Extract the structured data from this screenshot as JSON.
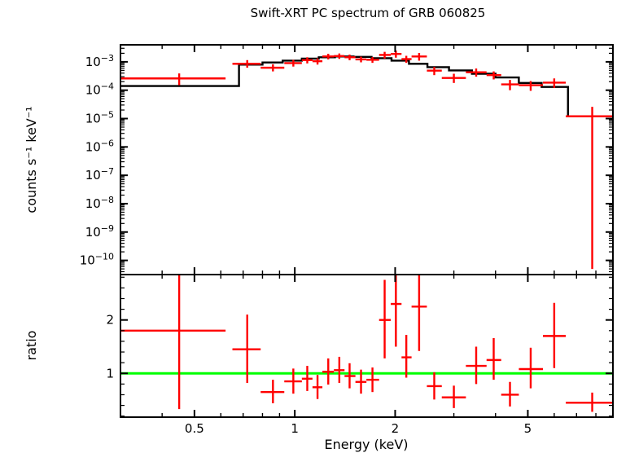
{
  "chart_data": {
    "type": "scatter",
    "title": "Swift-XRT PC spectrum of GRB 060825",
    "xlabel": "Energy (keV)",
    "x_scale": "log",
    "x_range": [
      0.3,
      9.0
    ],
    "x_major_ticks": [
      0.5,
      1,
      2,
      5
    ],
    "x_major_tick_labels": [
      "0.5",
      "1",
      "2",
      "5"
    ],
    "x_minor_ticks": [
      0.4,
      0.6,
      0.7,
      0.8,
      0.9,
      3,
      4,
      6,
      7,
      8
    ],
    "colors": {
      "data": "#ff0000",
      "model": "#000000",
      "ratio_line": "#00ff00",
      "axis": "#000000",
      "background": "#ffffff"
    },
    "top_panel": {
      "ylabel": "counts s⁻¹ keV⁻¹",
      "y_scale": "log",
      "y_range_log": [
        -10.5,
        -2.4
      ],
      "y_ticks": [
        {
          "exp": -3,
          "label": "10⁻³"
        },
        {
          "exp": -4,
          "label": "10⁻⁴"
        },
        {
          "exp": -5,
          "label": "10⁻⁵"
        },
        {
          "exp": -6,
          "label": "10⁻⁶"
        },
        {
          "exp": -7,
          "label": "10⁻⁷"
        },
        {
          "exp": -8,
          "label": "10⁻⁸"
        },
        {
          "exp": -9,
          "label": "10⁻⁹"
        },
        {
          "exp": -10,
          "label": "10⁻¹⁰"
        }
      ],
      "model_histogram": {
        "edges": [
          0.3,
          0.68,
          0.8,
          0.92,
          1.05,
          1.18,
          1.32,
          1.5,
          1.7,
          1.95,
          2.2,
          2.5,
          2.9,
          3.4,
          4.0,
          4.7,
          5.5,
          6.6,
          9.0
        ],
        "values": [
          0.00014,
          0.0008,
          0.00095,
          0.0011,
          0.0013,
          0.00145,
          0.00155,
          0.0015,
          0.00135,
          0.0011,
          0.00085,
          0.00065,
          0.0005,
          0.00038,
          0.00028,
          0.00018,
          0.00013,
          1.2e-05
        ]
      },
      "points": [
        {
          "x": 0.45,
          "xlo": 0.3,
          "xhi": 0.62,
          "y": 0.00026,
          "ylo": 0.00015,
          "yhi": 0.00039
        },
        {
          "x": 0.72,
          "xlo": 0.65,
          "xhi": 0.79,
          "y": 0.00085,
          "ylo": 0.00062,
          "yhi": 0.00115
        },
        {
          "x": 0.86,
          "xlo": 0.79,
          "xhi": 0.93,
          "y": 0.00062,
          "ylo": 0.00046,
          "yhi": 0.00082
        },
        {
          "x": 0.99,
          "xlo": 0.93,
          "xhi": 1.05,
          "y": 0.0009,
          "ylo": 0.00068,
          "yhi": 0.00117
        },
        {
          "x": 1.09,
          "xlo": 1.05,
          "xhi": 1.13,
          "y": 0.00115,
          "ylo": 0.00088,
          "yhi": 0.00145
        },
        {
          "x": 1.17,
          "xlo": 1.13,
          "xhi": 1.21,
          "y": 0.00105,
          "ylo": 0.0008,
          "yhi": 0.00133
        },
        {
          "x": 1.26,
          "xlo": 1.21,
          "xhi": 1.31,
          "y": 0.00155,
          "ylo": 0.00122,
          "yhi": 0.00192
        },
        {
          "x": 1.36,
          "xlo": 1.31,
          "xhi": 1.41,
          "y": 0.0016,
          "ylo": 0.00127,
          "yhi": 0.00197
        },
        {
          "x": 1.46,
          "xlo": 1.41,
          "xhi": 1.52,
          "y": 0.00145,
          "ylo": 0.00114,
          "yhi": 0.0018
        },
        {
          "x": 1.58,
          "xlo": 1.52,
          "xhi": 1.64,
          "y": 0.00122,
          "ylo": 0.00096,
          "yhi": 0.00152
        },
        {
          "x": 1.71,
          "xlo": 1.64,
          "xhi": 1.79,
          "y": 0.00118,
          "ylo": 0.00092,
          "yhi": 0.00147
        },
        {
          "x": 1.86,
          "xlo": 1.79,
          "xhi": 1.94,
          "y": 0.00175,
          "ylo": 0.0013,
          "yhi": 0.00225
        },
        {
          "x": 2.01,
          "xlo": 1.94,
          "xhi": 2.09,
          "y": 0.0019,
          "ylo": 0.0014,
          "yhi": 0.0025
        },
        {
          "x": 2.16,
          "xlo": 2.09,
          "xhi": 2.24,
          "y": 0.00125,
          "ylo": 0.00092,
          "yhi": 0.00163
        },
        {
          "x": 2.36,
          "xlo": 2.24,
          "xhi": 2.49,
          "y": 0.00155,
          "ylo": 0.0011,
          "yhi": 0.00205
        },
        {
          "x": 2.62,
          "xlo": 2.49,
          "xhi": 2.76,
          "y": 0.00049,
          "ylo": 0.00034,
          "yhi": 0.00066
        },
        {
          "x": 3.0,
          "xlo": 2.76,
          "xhi": 3.26,
          "y": 0.00027,
          "ylo": 0.00018,
          "yhi": 0.00038
        },
        {
          "x": 3.5,
          "xlo": 3.26,
          "xhi": 3.76,
          "y": 0.00043,
          "ylo": 0.0003,
          "yhi": 0.00058
        },
        {
          "x": 3.95,
          "xlo": 3.76,
          "xhi": 4.16,
          "y": 0.00034,
          "ylo": 0.00024,
          "yhi": 0.00046
        },
        {
          "x": 4.42,
          "xlo": 4.16,
          "xhi": 4.7,
          "y": 0.00016,
          "ylo": 0.0001,
          "yhi": 0.00023
        },
        {
          "x": 5.1,
          "xlo": 4.7,
          "xhi": 5.55,
          "y": 0.00015,
          "ylo": 9.5e-05,
          "yhi": 0.00021
        },
        {
          "x": 6.0,
          "xlo": 5.55,
          "xhi": 6.5,
          "y": 0.000185,
          "ylo": 0.00012,
          "yhi": 0.00026
        },
        {
          "x": 7.8,
          "xlo": 6.5,
          "xhi": 9.0,
          "y": 1.2e-05,
          "ylo": 5e-11,
          "yhi": 2.6e-05
        }
      ]
    },
    "bottom_panel": {
      "ylabel": "ratio",
      "y_scale": "linear",
      "y_range": [
        0.18,
        2.85
      ],
      "y_ticks": [
        {
          "value": 1,
          "label": "1"
        },
        {
          "value": 2,
          "label": "2"
        }
      ],
      "reference_line": 1.0,
      "points": [
        {
          "x": 0.45,
          "xlo": 0.3,
          "xhi": 0.62,
          "r": 1.8,
          "rlo": 0.33,
          "rhi": 2.85
        },
        {
          "x": 0.72,
          "xlo": 0.65,
          "xhi": 0.79,
          "r": 1.45,
          "rlo": 0.82,
          "rhi": 2.1
        },
        {
          "x": 0.86,
          "xlo": 0.79,
          "xhi": 0.93,
          "r": 0.65,
          "rlo": 0.44,
          "rhi": 0.88
        },
        {
          "x": 0.99,
          "xlo": 0.93,
          "xhi": 1.05,
          "r": 0.85,
          "rlo": 0.62,
          "rhi": 1.09
        },
        {
          "x": 1.09,
          "xlo": 1.05,
          "xhi": 1.13,
          "r": 0.9,
          "rlo": 0.67,
          "rhi": 1.14
        },
        {
          "x": 1.17,
          "xlo": 1.13,
          "xhi": 1.21,
          "r": 0.74,
          "rlo": 0.52,
          "rhi": 0.97
        },
        {
          "x": 1.26,
          "xlo": 1.21,
          "xhi": 1.31,
          "r": 1.03,
          "rlo": 0.79,
          "rhi": 1.28
        },
        {
          "x": 1.36,
          "xlo": 1.31,
          "xhi": 1.41,
          "r": 1.06,
          "rlo": 0.82,
          "rhi": 1.31
        },
        {
          "x": 1.46,
          "xlo": 1.41,
          "xhi": 1.52,
          "r": 0.95,
          "rlo": 0.72,
          "rhi": 1.19
        },
        {
          "x": 1.58,
          "xlo": 1.52,
          "xhi": 1.64,
          "r": 0.84,
          "rlo": 0.62,
          "rhi": 1.07
        },
        {
          "x": 1.71,
          "xlo": 1.64,
          "xhi": 1.79,
          "r": 0.88,
          "rlo": 0.65,
          "rhi": 1.11
        },
        {
          "x": 1.86,
          "xlo": 1.79,
          "xhi": 1.94,
          "r": 2.0,
          "rlo": 1.28,
          "rhi": 2.75
        },
        {
          "x": 2.01,
          "xlo": 1.94,
          "xhi": 2.09,
          "r": 2.3,
          "rlo": 1.5,
          "rhi": 2.85
        },
        {
          "x": 2.16,
          "xlo": 2.09,
          "xhi": 2.24,
          "r": 1.3,
          "rlo": 0.92,
          "rhi": 1.72
        },
        {
          "x": 2.36,
          "xlo": 2.24,
          "xhi": 2.49,
          "r": 2.25,
          "rlo": 1.42,
          "rhi": 2.85
        },
        {
          "x": 2.62,
          "xlo": 2.49,
          "xhi": 2.76,
          "r": 0.76,
          "rlo": 0.51,
          "rhi": 1.02
        },
        {
          "x": 3.0,
          "xlo": 2.76,
          "xhi": 3.26,
          "r": 0.55,
          "rlo": 0.35,
          "rhi": 0.77
        },
        {
          "x": 3.5,
          "xlo": 3.26,
          "xhi": 3.76,
          "r": 1.14,
          "rlo": 0.8,
          "rhi": 1.5
        },
        {
          "x": 3.95,
          "xlo": 3.76,
          "xhi": 4.16,
          "r": 1.25,
          "rlo": 0.88,
          "rhi": 1.66
        },
        {
          "x": 4.42,
          "xlo": 4.16,
          "xhi": 4.7,
          "r": 0.6,
          "rlo": 0.38,
          "rhi": 0.84
        },
        {
          "x": 5.1,
          "xlo": 4.7,
          "xhi": 5.55,
          "r": 1.08,
          "rlo": 0.72,
          "rhi": 1.48
        },
        {
          "x": 6.0,
          "xlo": 5.55,
          "xhi": 6.5,
          "r": 1.7,
          "rlo": 1.1,
          "rhi": 2.32
        },
        {
          "x": 7.8,
          "xlo": 6.5,
          "xhi": 9.0,
          "r": 0.45,
          "rlo": 0.28,
          "rhi": 0.64
        }
      ]
    }
  }
}
